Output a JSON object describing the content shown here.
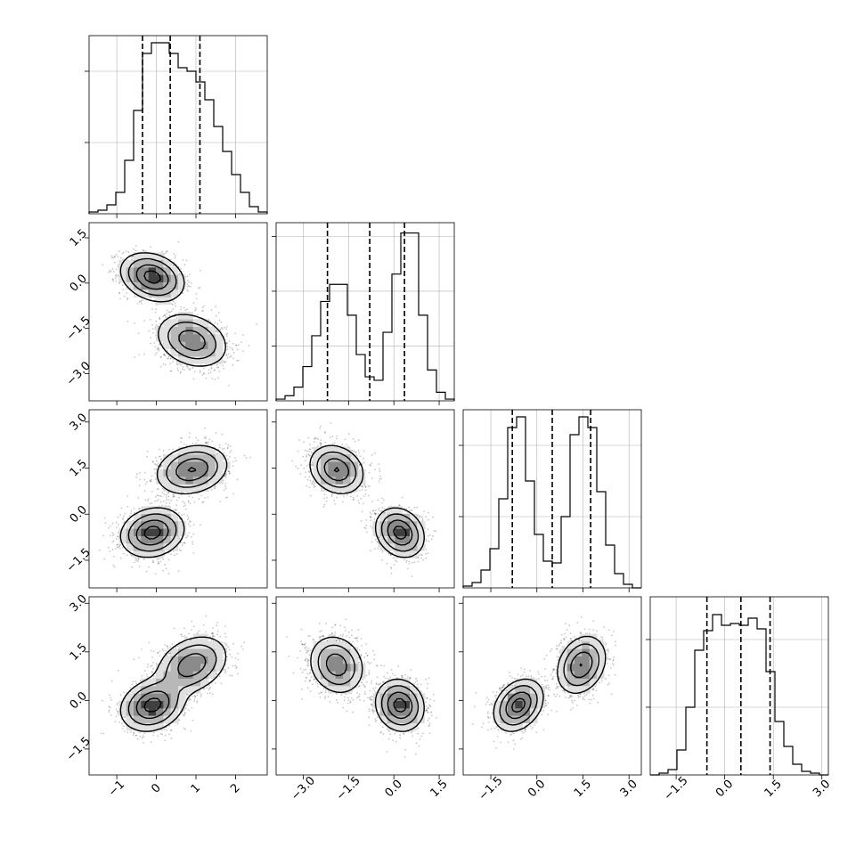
{
  "chart_data": {
    "type": "corner",
    "title": "",
    "grid": true,
    "variables": [
      {
        "name": "",
        "range": [
          -1.7,
          2.8
        ],
        "ticks": [
          -1,
          0,
          1,
          2
        ],
        "tick_labels": [
          "−1",
          "0",
          "1",
          "2"
        ],
        "quantiles": [
          -0.35,
          0.35,
          1.1
        ],
        "hist": {
          "edges_start": -1.7,
          "bin_width": 0.225,
          "counts": [
            1,
            2,
            5,
            12,
            30,
            58,
            90,
            96,
            96,
            90,
            82,
            80,
            74,
            64,
            49,
            35,
            22,
            12,
            4,
            1
          ]
        },
        "hist_ymax": 100,
        "hist_grid": [
          40,
          80
        ]
      },
      {
        "name": "",
        "range": [
          -3.9,
          2.0
        ],
        "ticks": [
          -3.0,
          -1.5,
          0.0,
          1.5
        ],
        "tick_labels": [
          "−3.0",
          "−1.5",
          "0.0",
          "1.5"
        ],
        "quantiles": [
          -2.2,
          -0.8,
          0.35
        ],
        "hist": {
          "edges_start": -3.9,
          "bin_width": 0.295,
          "counts": [
            1,
            3,
            8,
            20,
            38,
            58,
            68,
            68,
            50,
            27,
            14,
            12,
            40,
            74,
            98,
            98,
            50,
            18,
            5,
            1
          ]
        },
        "hist_ymax": 104,
        "hist_grid": [
          32,
          64,
          96
        ]
      },
      {
        "name": "",
        "range": [
          -2.4,
          3.4
        ],
        "ticks": [
          -1.5,
          0.0,
          1.5,
          3.0
        ],
        "tick_labels": [
          "−1.5",
          "0.0",
          "1.5",
          "3.0"
        ],
        "quantiles": [
          -0.8,
          0.5,
          1.75
        ],
        "hist": {
          "edges_start": -2.4,
          "bin_width": 0.29,
          "counts": [
            1,
            3,
            10,
            22,
            50,
            90,
            96,
            60,
            30,
            15,
            14,
            40,
            86,
            96,
            90,
            54,
            24,
            8,
            2,
            0
          ]
        },
        "hist_ymax": 100,
        "hist_grid": [
          40,
          80
        ]
      },
      {
        "name": "",
        "range": [
          -2.3,
          3.2
        ],
        "ticks": [
          -1.5,
          0.0,
          1.5,
          3.0
        ],
        "tick_labels": [
          "−1.5",
          "0.0",
          "1.5",
          "3.0"
        ],
        "quantiles": [
          -0.55,
          0.5,
          1.4
        ],
        "hist": {
          "edges_start": -2.3,
          "bin_width": 0.275,
          "counts": [
            0,
            1,
            3,
            14,
            38,
            70,
            81,
            90,
            84,
            85,
            84,
            88,
            82,
            58,
            30,
            16,
            6,
            2,
            1,
            0
          ]
        },
        "hist_ymax": 100,
        "hist_grid": [
          38,
          76
        ]
      }
    ],
    "clusters": [
      {
        "weight": 0.5,
        "mean": [
          -0.1,
          0.2,
          -0.6,
          -0.15
        ],
        "sd": [
          0.4,
          0.4,
          0.4,
          0.4
        ]
      },
      {
        "weight": 0.5,
        "mean": [
          0.9,
          -1.9,
          1.45,
          1.1
        ],
        "sd": [
          0.45,
          0.45,
          0.4,
          0.45
        ]
      }
    ],
    "pair_correlations": {
      "1-0": [
        -0.25,
        -0.25
      ],
      "2-0": [
        0.15,
        0.2
      ],
      "3-0": [
        0.2,
        0.3
      ],
      "2-1": [
        -0.2,
        -0.2
      ],
      "3-1": [
        -0.1,
        -0.15
      ],
      "3-2": [
        0.3,
        0.25
      ]
    },
    "contour_levels": [
      0.118,
      0.393,
      0.675,
      0.865
    ]
  }
}
